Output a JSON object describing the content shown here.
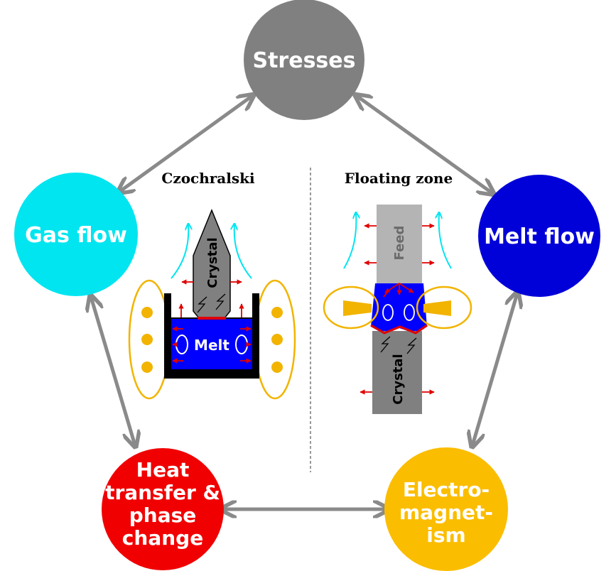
{
  "colors": {
    "stresses": "#808080",
    "gas_flow": "#00e5f0",
    "melt_flow": "#0000d8",
    "heat": "#f00000",
    "em": "#fbbd00",
    "arrow": "#8a8a8a",
    "crystal": "#808080",
    "feed": "#b4b4b4",
    "melt": "#0000ff",
    "coil": "#f2b400",
    "small_arrow": "#e00000",
    "gas_arrow": "#00e5f0"
  },
  "nodes": {
    "stresses": "Stresses",
    "gas_flow": "Gas flow",
    "melt_flow": "Melt flow",
    "heat_lines": [
      "Heat",
      "transfer &",
      "phase",
      "change"
    ],
    "em_lines": [
      "Electro-",
      "magnet-",
      "ism"
    ]
  },
  "panels": {
    "czochralski": {
      "title": "Czochralski",
      "crystal_label": "Crystal",
      "melt_label": "Melt"
    },
    "floating_zone": {
      "title": "Floating zone",
      "feed_label": "Feed",
      "crystal_label": "Crystal"
    }
  }
}
